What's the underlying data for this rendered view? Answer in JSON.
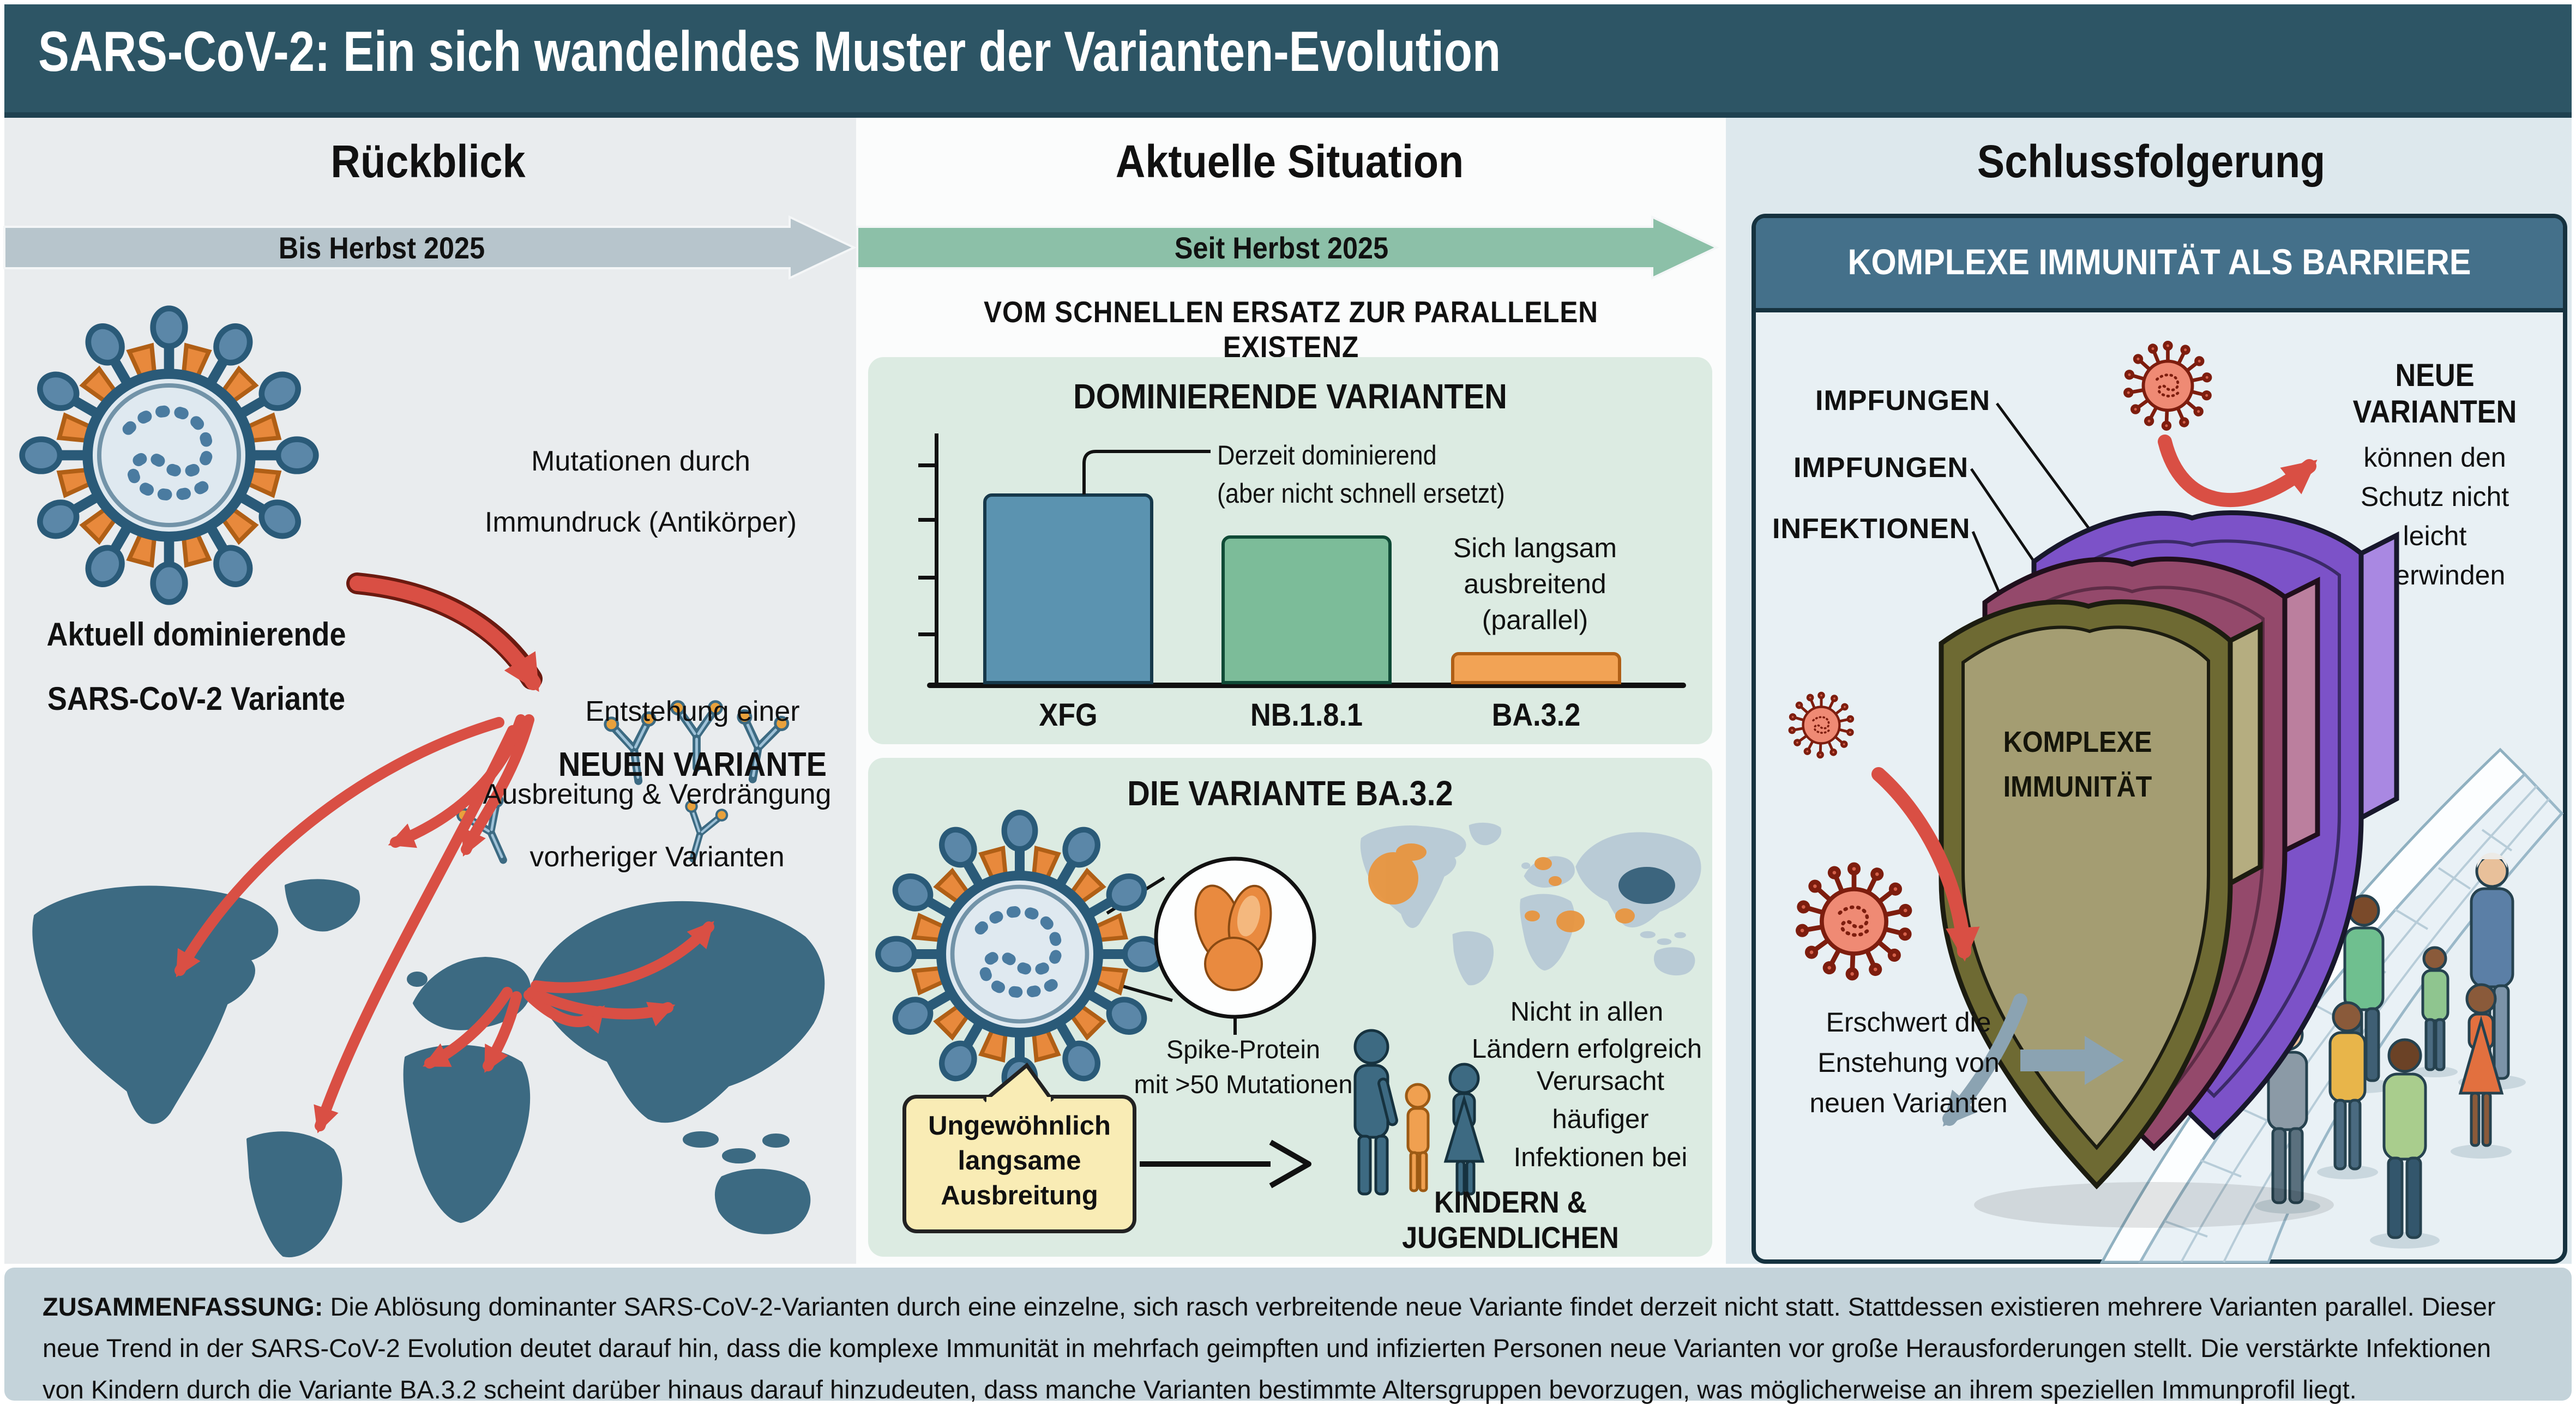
{
  "header": {
    "title": "SARS-CoV-2: Ein sich wandelndes Muster der Varianten-Evolution"
  },
  "columns": {
    "left": {
      "heading": "Rückblick",
      "timeline_label": "Bis Herbst 2025",
      "virus_caption": [
        "Aktuell dominierende",
        "SARS-CoV-2 Variante"
      ],
      "mutation_note": [
        "Mutationen durch",
        "Immundruck (Antikörper)"
      ],
      "emergence_note": [
        "Entstehung einer",
        "NEUEN VARIANTE"
      ],
      "spread_note": [
        "Ausbreitung & Verdrängung",
        "vorheriger Varianten"
      ]
    },
    "middle": {
      "heading": "Aktuelle Situation",
      "timeline_label": "Seit Herbst 2025",
      "subtitle": "VOM SCHNELLEN ERSATZ ZUR PARALLELEN EXISTENZ",
      "dominant_panel": {
        "title": "DOMINIERENDE VARIANTEN",
        "annotation_dominant": [
          "Derzeit dominierend",
          "(aber nicht schnell ersetzt)"
        ],
        "annotation_parallel": [
          "Sich langsam",
          "ausbreitend",
          "(parallel)"
        ]
      },
      "ba32_panel": {
        "title": "DIE VARIANTE BA.3.2",
        "spike_note": [
          "Spike-Protein",
          "mit >50 Mutationen"
        ],
        "map_note": [
          "Nicht in allen",
          "Ländern erfolgreich"
        ],
        "callout": [
          "Ungewöhnlich",
          "langsame",
          "Ausbreitung"
        ],
        "infection_note": [
          "Verursacht",
          "häufiger",
          "Infektionen bei"
        ],
        "infection_emphasis": "KINDERN & JUGENDLICHEN"
      }
    },
    "right": {
      "heading": "Schlussfolgerung",
      "panel_title": "KOMPLEXE IMMUNITÄT ALS BARRIERE",
      "layer_labels": [
        "IMPFUNGEN",
        "IMPFUNGEN",
        "INFEKTIONEN"
      ],
      "shield_label": [
        "KOMPLEXE",
        "IMMUNITÄT"
      ],
      "variants_emphasis": "NEUE VARIANTEN",
      "variants_note": [
        "können den",
        "Schutz nicht",
        "leicht",
        "überwinden"
      ],
      "barrier_note": [
        "Erschwert die",
        "Enstehung von",
        "neuen Varianten"
      ]
    }
  },
  "chart_data": {
    "type": "bar",
    "title": "DOMINIERENDE VARIANTEN",
    "categories": [
      "XFG",
      "NB.1.8.1",
      "BA.3.2"
    ],
    "values": [
      77,
      60,
      13
    ],
    "ylabel": "",
    "xlabel": "",
    "ylim": [
      0,
      100
    ],
    "yticks_labeled": false,
    "grid": false,
    "series_colors": [
      "#5b93b0",
      "#7cbc99",
      "#f2a355"
    ],
    "annotations": [
      {
        "target": "XFG",
        "text": "Derzeit dominierend (aber nicht schnell ersetzt)"
      },
      {
        "target": "BA.3.2",
        "text": "Sich langsam ausbreitend (parallel)"
      }
    ]
  },
  "summary": {
    "label": "ZUSAMMENFASSUNG:",
    "text": " Die Ablösung dominanter SARS-CoV-2-Varianten durch eine einzelne, sich rasch verbreitende neue Variante findet derzeit nicht statt. Stattdessen existieren mehrere Varianten parallel. Dieser neue Trend in der SARS-CoV-2 Evolution deutet darauf hin, dass die komplexe Immunität in mehrfach geimpften und infizierten Personen neue Varianten vor große Herausforderungen stellt. Die verstärkte Infektionen von Kindern durch die Variante BA.3.2 scheint darüber hinaus darauf hinzudeuten, dass manche Varianten bestimmte Altersgruppen bevorzugen, was möglicherweise an ihrem speziellen Immunprofil liegt."
  },
  "colors": {
    "header_bg": "#2d5565",
    "left_col_bg": "#e9ecee",
    "mid_col_bg": "#fbfcfc",
    "right_col_bg": "#dde8ed",
    "timeline_gray": "#b7c5cc",
    "timeline_green": "#8cc0a8",
    "panel_mint": "#dcebe2",
    "right_panel_bg": "#e8f0f4",
    "right_panel_border": "#16323f",
    "right_panel_header": "#44708a",
    "summary_bg": "#c4d3da",
    "bar_xfg": "#5b93b0",
    "bar_nb181": "#7cbc99",
    "bar_ba32": "#f2a355",
    "red_arrow": "#d94f44",
    "gray_arrow": "#8ba3b2",
    "map_continent": "#3c6a82",
    "mini_map_continent": "#b9cbd6",
    "mini_map_highlight": "#e8953f",
    "mini_map_dark": "#3c657e",
    "shield_purple": "#7c52c8",
    "shield_mauve": "#94496b",
    "shield_olive": "#a49d72",
    "callout_yellow": "#f9ecb5",
    "family_adult": "#3d6a82",
    "family_child": "#f0a050",
    "virus_blue": "#5b87a8",
    "virus_orange": "#e8893c",
    "virus_red": "#ef8a74"
  }
}
